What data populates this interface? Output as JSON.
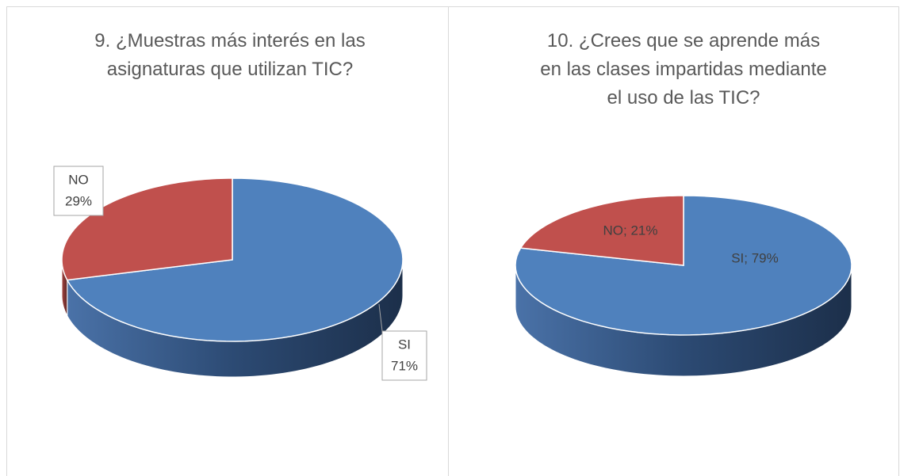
{
  "chart_data": [
    {
      "type": "pie3d",
      "title": "9. ¿Muestras más interés en las\nasignaturas que utilizan TIC?",
      "categories": [
        "SI",
        "NO"
      ],
      "values": [
        71,
        29
      ],
      "value_labels": [
        "71%",
        "29%"
      ],
      "colors": [
        "#4f81bd",
        "#c0504d"
      ]
    },
    {
      "type": "pie3d",
      "title": "10. ¿Crees que se aprende más\nen las clases impartidas mediante\nel uso de las TIC?",
      "categories": [
        "SI",
        "NO"
      ],
      "values": [
        79,
        21
      ],
      "value_labels": [
        "SI; 79%",
        "NO; 21%"
      ],
      "colors": [
        "#4f81bd",
        "#c0504d"
      ]
    }
  ]
}
